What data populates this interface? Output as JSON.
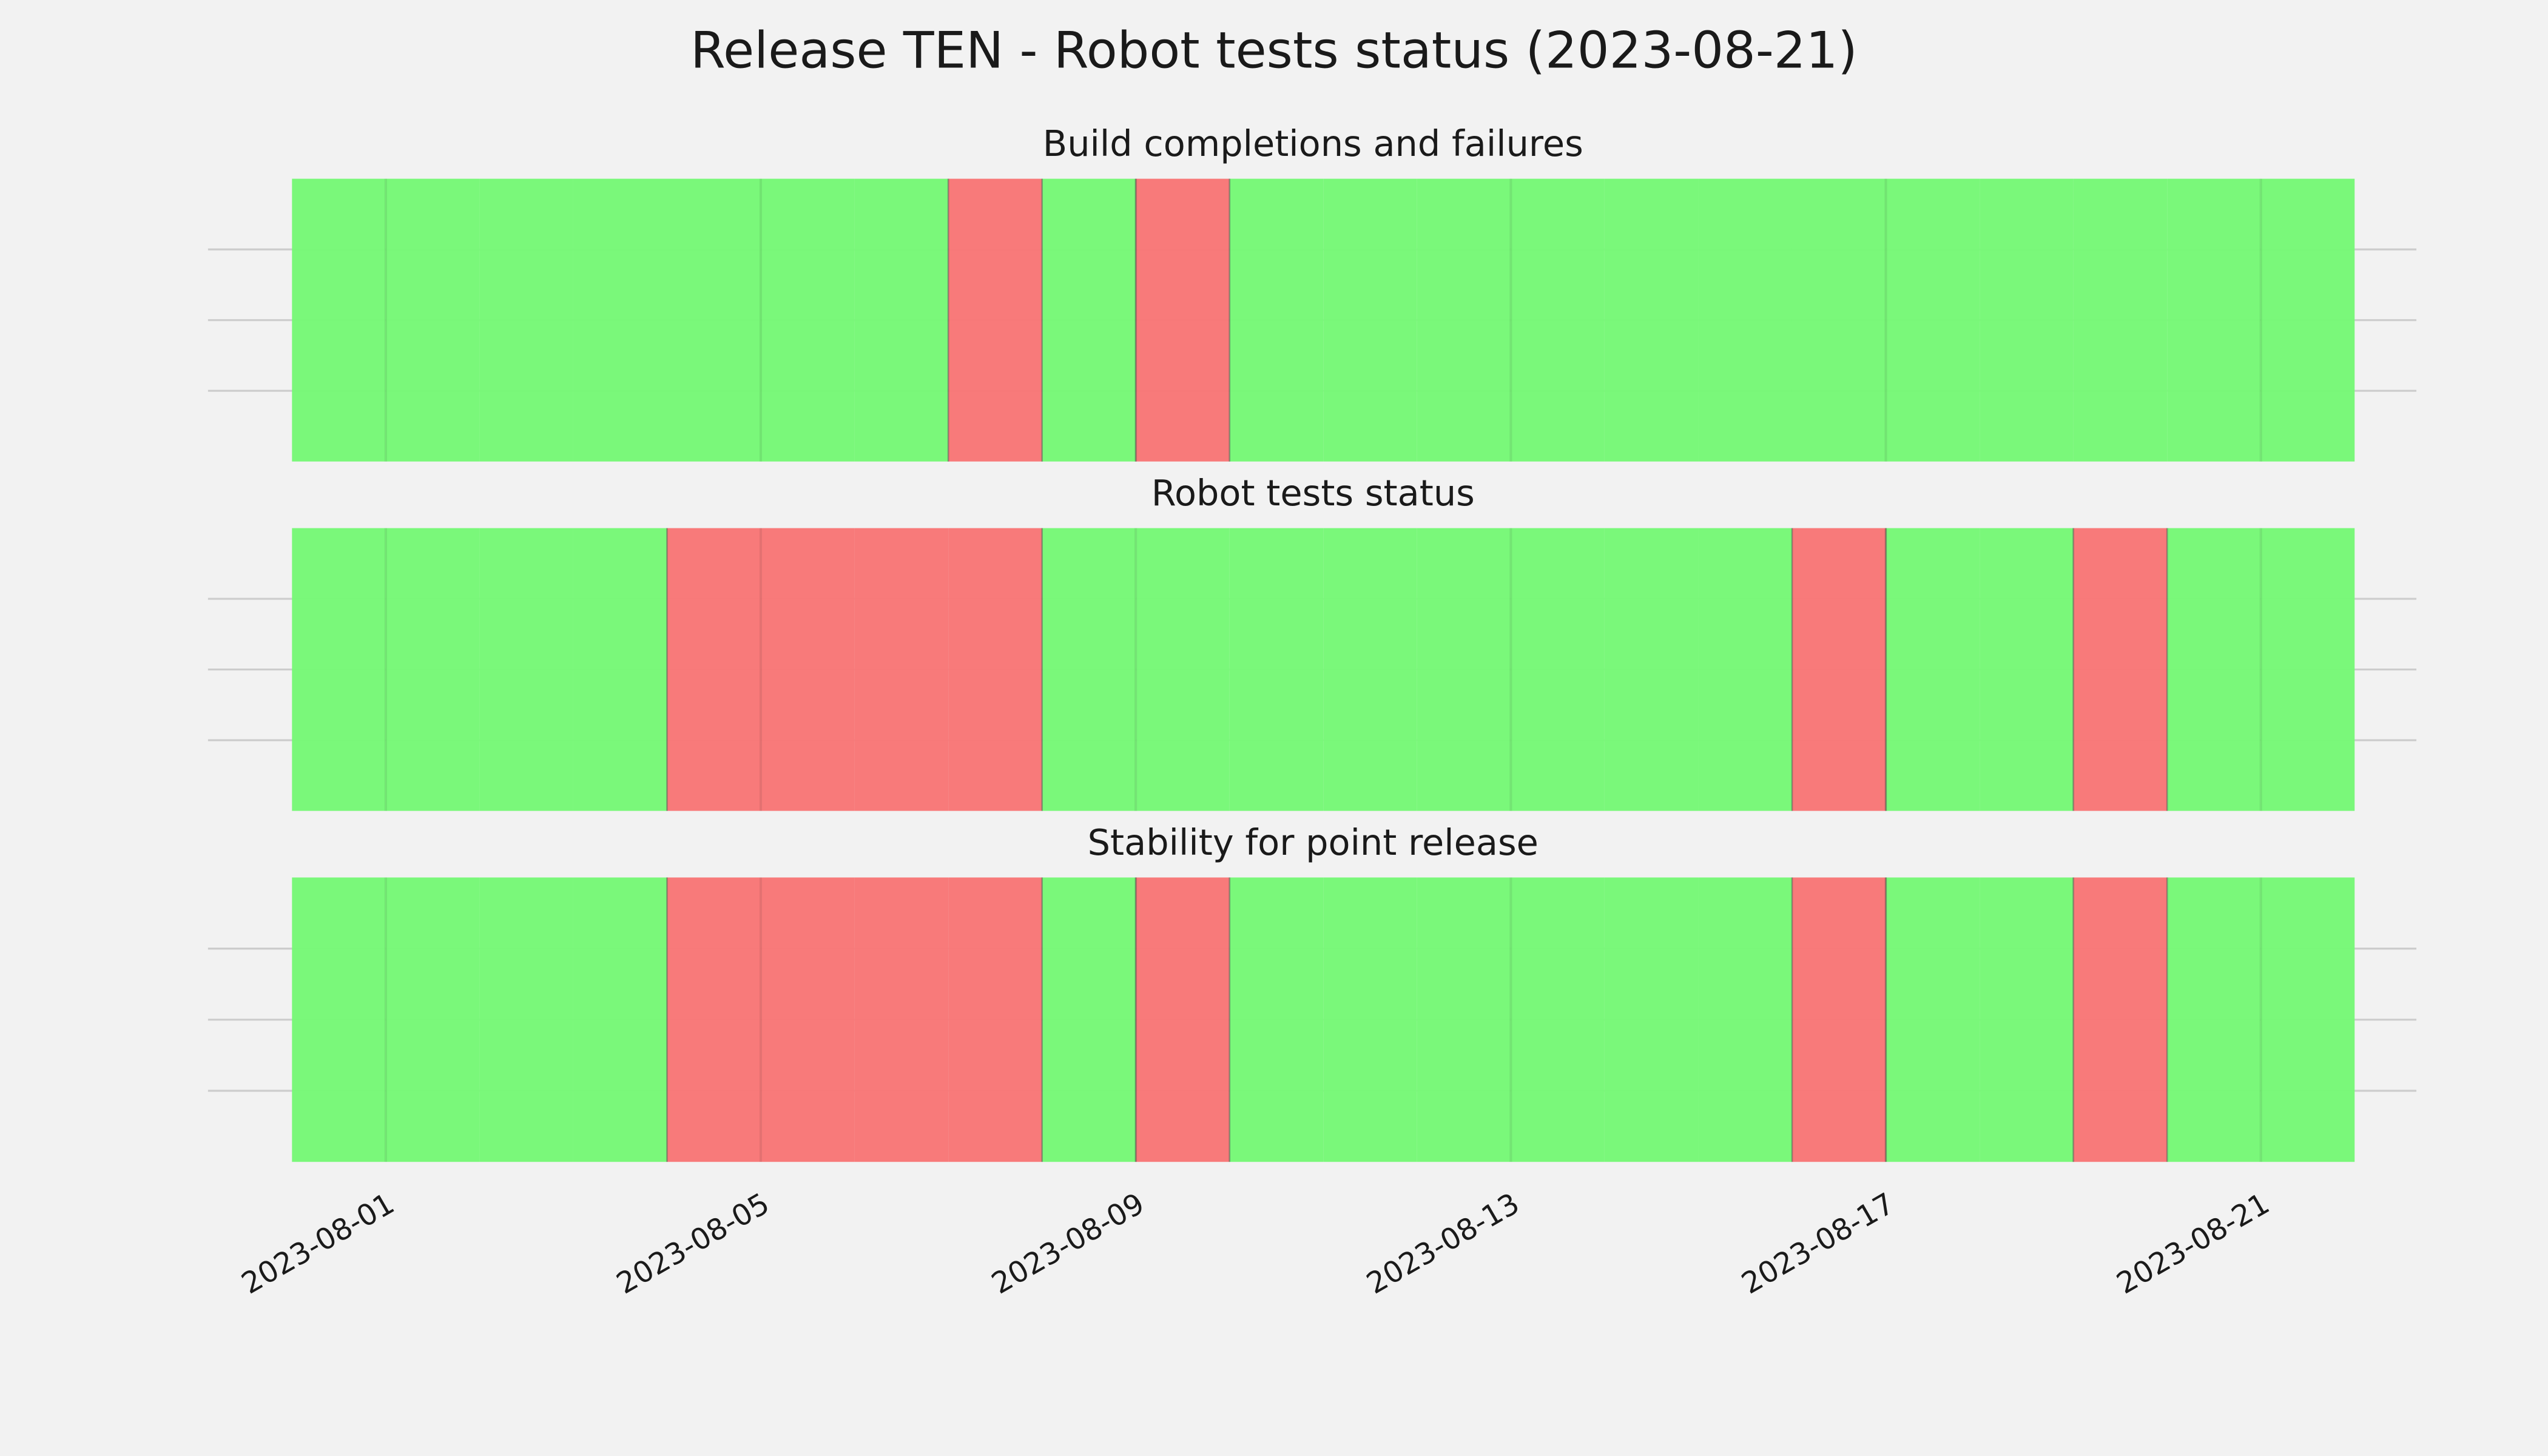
{
  "title": "Release TEN - Robot tests status (2023-08-21)",
  "chart_data": [
    {
      "type": "timeline",
      "title": "Build completions and failures",
      "x": [
        "2023-07-31",
        "2023-08-01",
        "2023-08-02",
        "2023-08-03",
        "2023-08-04",
        "2023-08-05",
        "2023-08-06",
        "2023-08-07",
        "2023-08-08",
        "2023-08-09",
        "2023-08-10",
        "2023-08-11",
        "2023-08-12",
        "2023-08-13",
        "2023-08-14",
        "2023-08-15",
        "2023-08-16",
        "2023-08-17",
        "2023-08-18",
        "2023-08-19",
        "2023-08-20",
        "2023-08-21"
      ],
      "values": [
        1,
        1,
        1,
        1,
        1,
        1,
        1,
        0,
        1,
        0,
        1,
        1,
        1,
        1,
        1,
        1,
        1,
        1,
        1,
        1,
        1,
        1
      ],
      "colors": [
        "#f87676",
        "#76f876"
      ],
      "xlim": [
        "2023-07-30",
        "2023-08-22"
      ],
      "xticks": [
        "2023-08-01",
        "2023-08-05",
        "2023-08-09",
        "2023-08-13",
        "2023-08-17",
        "2023-08-21"
      ],
      "ylim": [
        0,
        1
      ],
      "yticks": [
        0.25,
        0.5,
        0.75
      ],
      "grid": true
    },
    {
      "type": "timeline",
      "title": "Robot tests status",
      "x": [
        "2023-07-31",
        "2023-08-01",
        "2023-08-02",
        "2023-08-03",
        "2023-08-04",
        "2023-08-05",
        "2023-08-06",
        "2023-08-07",
        "2023-08-08",
        "2023-08-09",
        "2023-08-10",
        "2023-08-11",
        "2023-08-12",
        "2023-08-13",
        "2023-08-14",
        "2023-08-15",
        "2023-08-16",
        "2023-08-17",
        "2023-08-18",
        "2023-08-19",
        "2023-08-20",
        "2023-08-21"
      ],
      "values": [
        1,
        1,
        1,
        1,
        0,
        0,
        0,
        0,
        1,
        1,
        1,
        1,
        1,
        1,
        1,
        1,
        0,
        1,
        1,
        0,
        1,
        1
      ],
      "colors": [
        "#f87676",
        "#76f876"
      ],
      "xlim": [
        "2023-07-30",
        "2023-08-22"
      ],
      "xticks": [
        "2023-08-01",
        "2023-08-05",
        "2023-08-09",
        "2023-08-13",
        "2023-08-17",
        "2023-08-21"
      ],
      "ylim": [
        0,
        1
      ],
      "yticks": [
        0.25,
        0.5,
        0.75
      ],
      "grid": true
    },
    {
      "type": "timeline",
      "title": "Stability for point release",
      "x": [
        "2023-07-31",
        "2023-08-01",
        "2023-08-02",
        "2023-08-03",
        "2023-08-04",
        "2023-08-05",
        "2023-08-06",
        "2023-08-07",
        "2023-08-08",
        "2023-08-09",
        "2023-08-10",
        "2023-08-11",
        "2023-08-12",
        "2023-08-13",
        "2023-08-14",
        "2023-08-15",
        "2023-08-16",
        "2023-08-17",
        "2023-08-18",
        "2023-08-19",
        "2023-08-20",
        "2023-08-21"
      ],
      "values": [
        1,
        1,
        1,
        1,
        0,
        0,
        0,
        0,
        1,
        0,
        1,
        1,
        1,
        1,
        1,
        1,
        0,
        1,
        1,
        0,
        1,
        1
      ],
      "colors": [
        "#f87676",
        "#76f876"
      ],
      "xlim": [
        "2023-07-30",
        "2023-08-22"
      ],
      "xticks": [
        "2023-08-01",
        "2023-08-05",
        "2023-08-09",
        "2023-08-13",
        "2023-08-17",
        "2023-08-21"
      ],
      "ylim": [
        0,
        1
      ],
      "yticks": [
        0.25,
        0.5,
        0.75
      ],
      "grid": true
    }
  ]
}
